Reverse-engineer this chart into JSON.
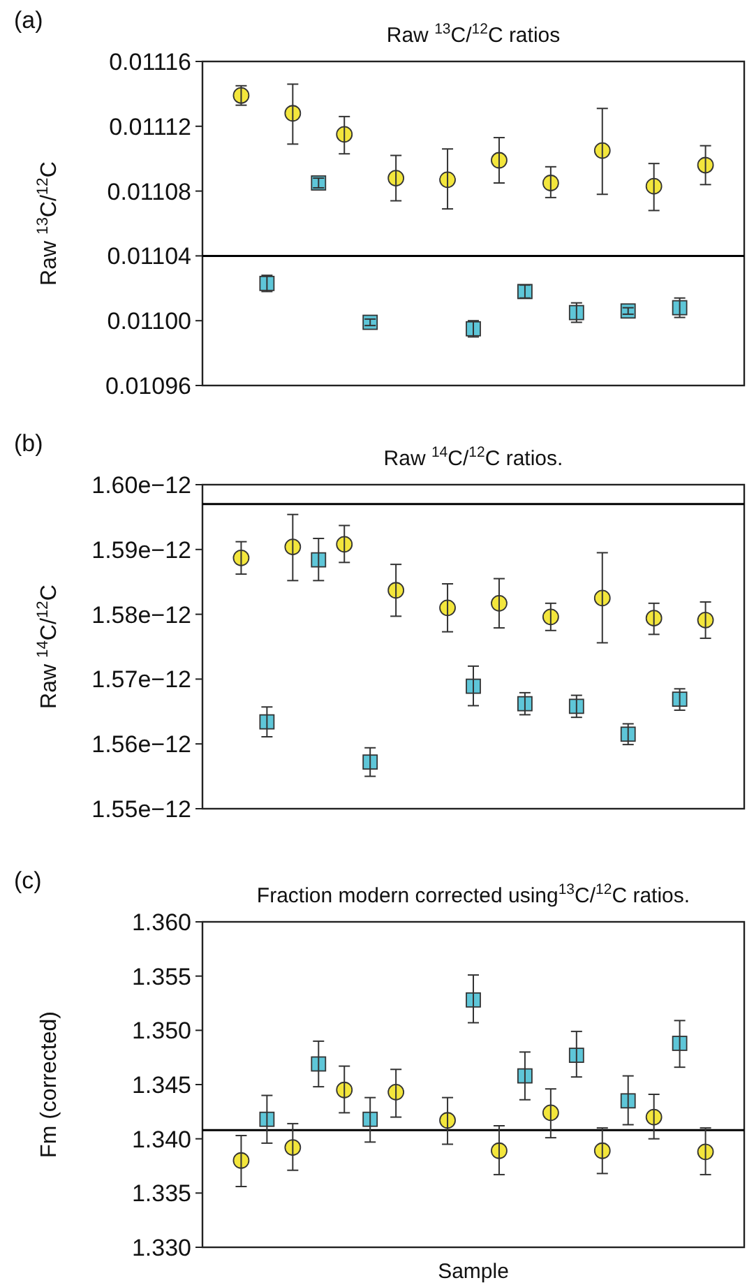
{
  "chart_data": [
    {
      "type": "scatter",
      "title": "Raw $^{13}$C/$^{12}$C ratios",
      "ylabel": "Raw $^{13}$C/$^{12}$C",
      "annotations": [
        "(a)"
      ],
      "categories": [
        null,
        null,
        null,
        null,
        null,
        null,
        null,
        null,
        null,
        null,
        null,
        null,
        null,
        null,
        null,
        null,
        null,
        null,
        null,
        null,
        null
      ],
      "ylim": [
        0.01096,
        0.01116
      ],
      "yticks": [
        0.01096,
        {
          "value": 0.011,
          "label": "0.01100"
        },
        0.01104,
        0.01108,
        0.01112,
        0.01116
      ],
      "tick_labels": "y",
      "ref_lines": [
        {
          "axis": "y",
          "value": 0.01104,
          "color": "#000000"
        }
      ],
      "series": [
        {
          "color": "#f3e63c",
          "marker": "circle",
          "values": [
            null,
            0.011139,
            null,
            0.011128,
            null,
            0.011115,
            null,
            0.011088,
            null,
            0.011087,
            null,
            0.011099,
            null,
            0.011085,
            null,
            0.011105,
            null,
            0.011083,
            null,
            0.011096,
            null
          ],
          "errors": [
            null,
            [
              0.011133,
              0.011145
            ],
            null,
            [
              0.011109,
              0.011146
            ],
            null,
            [
              0.011103,
              0.011126
            ],
            null,
            [
              0.011074,
              0.011102
            ],
            null,
            [
              0.011069,
              0.011106
            ],
            null,
            [
              0.011085,
              0.011113
            ],
            null,
            [
              0.011076,
              0.011095
            ],
            null,
            [
              0.011078,
              0.011131
            ],
            null,
            [
              0.011068,
              0.011097
            ],
            null,
            [
              0.011084,
              0.011108
            ],
            null
          ]
        },
        {
          "color": "#5ec6d8",
          "marker": "square",
          "values": [
            null,
            null,
            0.011023,
            null,
            0.011085,
            null,
            0.010999,
            null,
            null,
            null,
            0.010995,
            null,
            0.011018,
            null,
            0.011005,
            null,
            0.011006,
            null,
            0.011008,
            null,
            null
          ],
          "errors": [
            null,
            null,
            5e-06,
            null,
            3e-06,
            null,
            2e-06,
            null,
            null,
            null,
            5e-06,
            null,
            4e-06,
            null,
            6e-06,
            null,
            2e-06,
            null,
            6e-06,
            null,
            null
          ]
        }
      ]
    },
    {
      "type": "scatter",
      "title": "Raw $^{14}$C/$^{12}$C ratios.",
      "ylabel": "Raw $^{14}$C/$^{12}$C",
      "annotations": [
        "(b)"
      ],
      "categories": [
        null,
        null,
        null,
        null,
        null,
        null,
        null,
        null,
        null,
        null,
        null,
        null,
        null,
        null,
        null,
        null,
        null,
        null,
        null,
        null,
        null
      ],
      "ylim": [
        1.55e-12,
        1.6e-12
      ],
      "yticks": [
        {
          "value": 1.55e-12,
          "label": "1.55e−12"
        },
        {
          "value": 1.56e-12,
          "label": "1.56e−12"
        },
        {
          "value": 1.57e-12,
          "label": "1.57e−12"
        },
        {
          "value": 1.58e-12,
          "label": "1.58e−12"
        },
        {
          "value": 1.59e-12,
          "label": "1.59e−12"
        },
        {
          "value": 1.6e-12,
          "label": "1.60e−12"
        }
      ],
      "tick_labels": "y",
      "ref_lines": [
        {
          "axis": "y",
          "value": 1.597e-12,
          "color": "#000000"
        }
      ],
      "series": [
        {
          "color": "#f3e63c",
          "marker": "circle",
          "values": [
            null,
            1.5887e-12,
            null,
            1.5904e-12,
            null,
            1.5908e-12,
            null,
            1.5837e-12,
            null,
            1.581e-12,
            null,
            1.5817e-12,
            null,
            1.5796e-12,
            null,
            1.5825e-12,
            null,
            1.5794e-12,
            null,
            1.5791e-12,
            null
          ],
          "errors": [
            null,
            [
              1.5862e-12,
              1.5912e-12
            ],
            null,
            [
              1.5852e-12,
              1.5954e-12
            ],
            null,
            [
              1.588e-12,
              1.5937e-12
            ],
            null,
            [
              1.5797e-12,
              1.5877e-12
            ],
            null,
            [
              1.5773e-12,
              1.5847e-12
            ],
            null,
            [
              1.5779e-12,
              1.5855e-12
            ],
            null,
            [
              1.5775e-12,
              1.5817e-12
            ],
            null,
            [
              1.5756e-12,
              1.5895e-12
            ],
            null,
            [
              1.5769e-12,
              1.5817e-12
            ],
            null,
            [
              1.5763e-12,
              1.5819e-12
            ],
            null
          ]
        },
        {
          "color": "#5ec6d8",
          "marker": "square",
          "values": [
            null,
            null,
            1.5634e-12,
            null,
            1.5884e-12,
            null,
            1.5572e-12,
            null,
            null,
            null,
            1.5689e-12,
            null,
            1.5662e-12,
            null,
            1.5658e-12,
            null,
            1.5615e-12,
            null,
            1.5669e-12,
            null,
            null
          ],
          "errors": [
            null,
            null,
            [
              1.5611e-12,
              1.5657e-12
            ],
            null,
            [
              1.5852e-12,
              1.5917e-12
            ],
            null,
            [
              1.555e-12,
              1.5594e-12
            ],
            null,
            null,
            null,
            [
              1.5659e-12,
              1.572e-12
            ],
            null,
            [
              1.5645e-12,
              1.5679e-12
            ],
            null,
            [
              1.5641e-12,
              1.5675e-12
            ],
            null,
            [
              1.5599e-12,
              1.5631e-12
            ],
            null,
            [
              1.5652e-12,
              1.5685e-12
            ],
            null,
            null
          ]
        }
      ]
    },
    {
      "type": "scatter",
      "title": "Fraction modern corrected using$^{13}$C/$^{12}$C ratios.",
      "ylabel": "Fm (corrected)",
      "xlabel": "Sample",
      "annotations": [
        "(c)"
      ],
      "categories": [
        null,
        null,
        null,
        null,
        null,
        null,
        null,
        null,
        null,
        null,
        null,
        null,
        null,
        null,
        null,
        null,
        null,
        null,
        null,
        null,
        null
      ],
      "ylim": [
        1.33,
        1.36
      ],
      "yticks": [
        {
          "value": 1.33,
          "label": "1.330"
        },
        1.335,
        {
          "value": 1.34,
          "label": "1.340"
        },
        1.345,
        {
          "value": 1.35,
          "label": "1.350"
        },
        1.355,
        {
          "value": 1.36,
          "label": "1.360"
        }
      ],
      "tick_labels": "y",
      "ref_lines": [
        {
          "axis": "y",
          "value": 1.3408,
          "color": "#000000"
        }
      ],
      "series": [
        {
          "color": "#f3e63c",
          "marker": "circle",
          "values": [
            null,
            1.338,
            null,
            1.3392,
            null,
            1.3445,
            null,
            1.3443,
            null,
            1.3417,
            null,
            1.3389,
            null,
            1.3424,
            null,
            1.3389,
            null,
            1.342,
            null,
            1.3388,
            null
          ],
          "errors": [
            null,
            [
              1.3356,
              1.3403
            ],
            null,
            [
              1.3371,
              1.3414
            ],
            null,
            [
              1.3424,
              1.3467
            ],
            null,
            [
              1.342,
              1.3464
            ],
            null,
            [
              1.3395,
              1.3438
            ],
            null,
            [
              1.3367,
              1.3412
            ],
            null,
            [
              1.3401,
              1.3446
            ],
            null,
            [
              1.3368,
              1.341
            ],
            null,
            [
              1.34,
              1.3441
            ],
            null,
            [
              1.3367,
              1.341
            ],
            null
          ]
        },
        {
          "color": "#5ec6d8",
          "marker": "square",
          "values": [
            null,
            null,
            1.3418,
            null,
            1.3469,
            null,
            1.3418,
            null,
            null,
            null,
            1.3528,
            null,
            1.3458,
            null,
            1.3477,
            null,
            1.3435,
            null,
            1.3488,
            null,
            null
          ],
          "errors": [
            null,
            null,
            [
              1.3396,
              1.344
            ],
            null,
            [
              1.3448,
              1.349
            ],
            null,
            [
              1.3397,
              1.3438
            ],
            null,
            null,
            null,
            [
              1.3507,
              1.3551
            ],
            null,
            [
              1.3436,
              1.348
            ],
            null,
            [
              1.3457,
              1.3499
            ],
            null,
            [
              1.3413,
              1.3458
            ],
            null,
            [
              1.3466,
              1.3509
            ],
            null,
            null
          ]
        }
      ]
    }
  ]
}
